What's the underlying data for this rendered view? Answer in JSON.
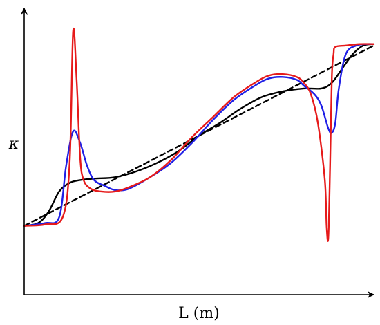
{
  "chart_data": {
    "type": "line",
    "xlabel": "L (m)",
    "ylabel": "κ",
    "xlim": [
      0,
      1
    ],
    "ylim": [
      0,
      1
    ],
    "grid": false,
    "legend": "none",
    "series": [
      {
        "color": "#000000",
        "style": "dashed",
        "x": [
          0.0,
          1.0
        ],
        "y": [
          0.24,
          0.87
        ]
      },
      {
        "color": "#000000",
        "style": "solid",
        "x": [
          0.0,
          0.04,
          0.07,
          0.1,
          0.13,
          0.16,
          0.2,
          0.26,
          0.32,
          0.38,
          0.44,
          0.5,
          0.56,
          0.62,
          0.68,
          0.74,
          0.8,
          0.85,
          0.88,
          0.91,
          0.94,
          0.97,
          1.0
        ],
        "y": [
          0.24,
          0.25,
          0.29,
          0.36,
          0.39,
          0.4,
          0.405,
          0.41,
          0.43,
          0.46,
          0.5,
          0.555,
          0.6,
          0.65,
          0.69,
          0.71,
          0.72,
          0.72,
          0.74,
          0.79,
          0.84,
          0.87,
          0.875
        ]
      },
      {
        "color": "#1f1fe6",
        "style": "solid",
        "x": [
          0.0,
          0.06,
          0.1,
          0.12,
          0.14,
          0.16,
          0.18,
          0.2,
          0.23,
          0.26,
          0.3,
          0.36,
          0.42,
          0.48,
          0.54,
          0.6,
          0.66,
          0.7,
          0.74,
          0.78,
          0.8,
          0.83,
          0.85,
          0.87,
          0.88,
          0.89,
          0.9,
          0.92,
          0.95,
          0.98,
          1.0
        ],
        "y": [
          0.24,
          0.25,
          0.27,
          0.45,
          0.57,
          0.53,
          0.45,
          0.4,
          0.38,
          0.365,
          0.37,
          0.41,
          0.46,
          0.53,
          0.61,
          0.68,
          0.73,
          0.755,
          0.76,
          0.75,
          0.73,
          0.7,
          0.66,
          0.58,
          0.565,
          0.6,
          0.72,
          0.84,
          0.87,
          0.875,
          0.875
        ]
      },
      {
        "color": "#e61a1a",
        "style": "solid",
        "x": [
          0.0,
          0.06,
          0.11,
          0.13,
          0.14,
          0.15,
          0.16,
          0.17,
          0.19,
          0.22,
          0.26,
          0.3,
          0.36,
          0.42,
          0.48,
          0.54,
          0.6,
          0.66,
          0.7,
          0.74,
          0.78,
          0.8,
          0.82,
          0.84,
          0.86,
          0.865,
          0.87,
          0.875,
          0.88,
          0.885,
          0.89,
          0.92,
          0.96,
          1.0
        ],
        "y": [
          0.24,
          0.245,
          0.27,
          0.46,
          0.92,
          0.75,
          0.48,
          0.4,
          0.37,
          0.36,
          0.36,
          0.375,
          0.41,
          0.47,
          0.55,
          0.62,
          0.69,
          0.74,
          0.765,
          0.77,
          0.76,
          0.74,
          0.7,
          0.6,
          0.4,
          0.24,
          0.2,
          0.45,
          0.76,
          0.84,
          0.865,
          0.87,
          0.875,
          0.875
        ]
      }
    ]
  }
}
